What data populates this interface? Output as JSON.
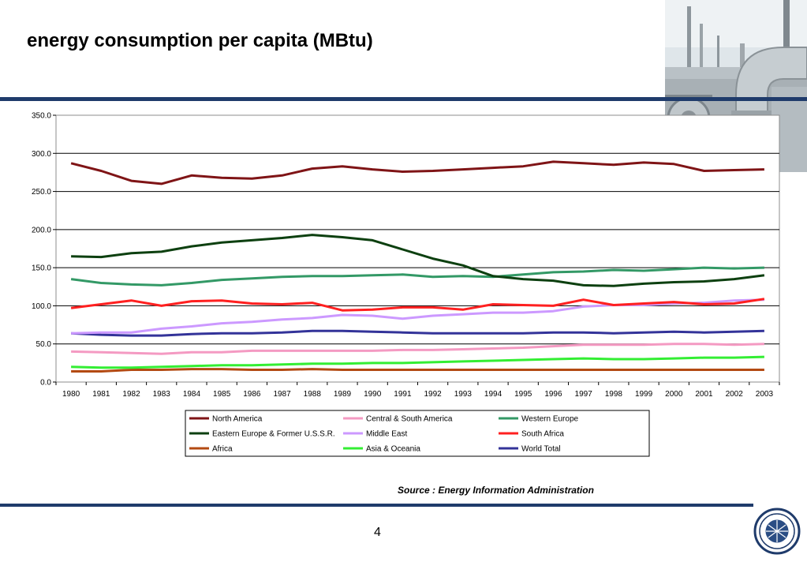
{
  "slide": {
    "title": "energy consumption per capita (MBtu)",
    "source": "Source : Energy Information Administration",
    "page_number": "4",
    "accent_color": "#1f3b6b"
  },
  "decor": {
    "photo": "industrial-pipes-photo",
    "logo": "circular-seal-logo"
  },
  "chart_data": {
    "type": "line",
    "title": "",
    "xlabel": "",
    "ylabel": "",
    "x": [
      "1980",
      "1981",
      "1982",
      "1983",
      "1984",
      "1985",
      "1986",
      "1987",
      "1988",
      "1989",
      "1990",
      "1991",
      "1992",
      "1993",
      "1994",
      "1995",
      "1996",
      "1997",
      "1998",
      "1999",
      "2000",
      "2001",
      "2002",
      "2003"
    ],
    "ylim": [
      0,
      350
    ],
    "yticks": [
      "0.0",
      "50.0",
      "100.0",
      "150.0",
      "200.0",
      "250.0",
      "300.0",
      "350.0"
    ],
    "grid": true,
    "legend_position": "bottom",
    "series": [
      {
        "name": "North America",
        "color": "#7f1416",
        "values": [
          287,
          277,
          264,
          260,
          271,
          268,
          267,
          271,
          280,
          283,
          279,
          276,
          277,
          279,
          281,
          283,
          289,
          287,
          285,
          288,
          286,
          277,
          278,
          279
        ]
      },
      {
        "name": "Central & South America",
        "color": "#f49ac2",
        "values": [
          40,
          39,
          38,
          37,
          39,
          39,
          41,
          41,
          41,
          41,
          41,
          42,
          42,
          43,
          44,
          45,
          47,
          49,
          49,
          49,
          50,
          50,
          49,
          50
        ]
      },
      {
        "name": "Western Europe",
        "color": "#339966",
        "values": [
          135,
          130,
          128,
          127,
          130,
          134,
          136,
          138,
          139,
          139,
          140,
          141,
          138,
          139,
          138,
          141,
          144,
          145,
          147,
          146,
          148,
          150,
          149,
          150
        ]
      },
      {
        "name": "Eastern Europe & Former U.S.S.R.",
        "color": "#0d4010",
        "values": [
          165,
          164,
          169,
          171,
          178,
          183,
          186,
          189,
          193,
          190,
          186,
          174,
          162,
          153,
          139,
          135,
          133,
          127,
          126,
          129,
          131,
          132,
          135,
          140
        ]
      },
      {
        "name": "Middle East",
        "color": "#cc99ff",
        "values": [
          64,
          65,
          65,
          70,
          73,
          77,
          79,
          82,
          84,
          88,
          87,
          83,
          87,
          89,
          91,
          91,
          93,
          99,
          101,
          101,
          103,
          104,
          107,
          108
        ]
      },
      {
        "name": "South Africa",
        "color": "#ff2020",
        "values": [
          97,
          102,
          107,
          100,
          106,
          107,
          103,
          102,
          104,
          94,
          95,
          98,
          98,
          95,
          102,
          101,
          100,
          108,
          101,
          103,
          105,
          102,
          103,
          109
        ]
      },
      {
        "name": "Africa",
        "color": "#b34a12",
        "values": [
          14,
          14,
          16,
          16,
          17,
          17,
          16,
          16,
          17,
          16,
          16,
          16,
          16,
          16,
          16,
          16,
          16,
          16,
          16,
          16,
          16,
          16,
          16,
          16
        ]
      },
      {
        "name": "Asia & Oceania",
        "color": "#33ee33",
        "values": [
          20,
          19,
          19,
          20,
          21,
          22,
          22,
          23,
          24,
          24,
          25,
          25,
          26,
          27,
          28,
          29,
          30,
          31,
          30,
          30,
          31,
          32,
          32,
          33
        ]
      },
      {
        "name": "World Total",
        "color": "#333399",
        "values": [
          64,
          62,
          61,
          61,
          63,
          64,
          64,
          65,
          67,
          67,
          66,
          65,
          64,
          64,
          64,
          64,
          65,
          65,
          64,
          65,
          66,
          65,
          66,
          67
        ]
      }
    ]
  }
}
